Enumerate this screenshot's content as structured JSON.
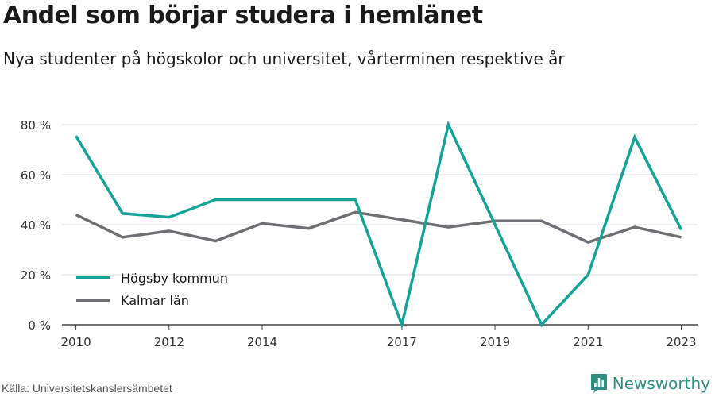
{
  "title": "Andel som börjar studera i hemlänet",
  "subtitle": "Nya studenter på högskolor och universitet, vårterminen respektive år",
  "source": "Källa: Universitetskanslersämbetet",
  "brand": {
    "name": "Newsworthy",
    "icon": "bar-chart-icon",
    "color": "#2e8f83"
  },
  "chart_data": {
    "type": "line",
    "x": [
      2010,
      2011,
      2012,
      2013,
      2014,
      2015,
      2016,
      2017,
      2018,
      2019,
      2020,
      2021,
      2022,
      2023
    ],
    "series": [
      {
        "name": "Högsby kommun",
        "color": "#14a398",
        "values": [
          75.5,
          44.5,
          43,
          50,
          50,
          50,
          50,
          0,
          80,
          40,
          0,
          20,
          75,
          38
        ]
      },
      {
        "name": "Kalmar län",
        "color": "#6e6e73",
        "values": [
          44,
          35,
          37.5,
          33.5,
          40.5,
          38.5,
          45,
          42,
          39,
          41.5,
          41.5,
          33,
          39,
          35
        ]
      }
    ],
    "x_tick_labels": [
      "2010",
      "2012",
      "2014",
      "2017",
      "2019",
      "2021",
      "2023"
    ],
    "y_ticks": [
      0,
      20,
      40,
      60,
      80
    ],
    "y_tick_labels": [
      "0 %",
      "20 %",
      "40 %",
      "60 %",
      "80 %"
    ],
    "ylim": [
      0,
      80
    ],
    "xlim": [
      2010,
      2023
    ],
    "grid": true,
    "legend_position": "bottom-left",
    "xlabel": "",
    "ylabel": ""
  }
}
